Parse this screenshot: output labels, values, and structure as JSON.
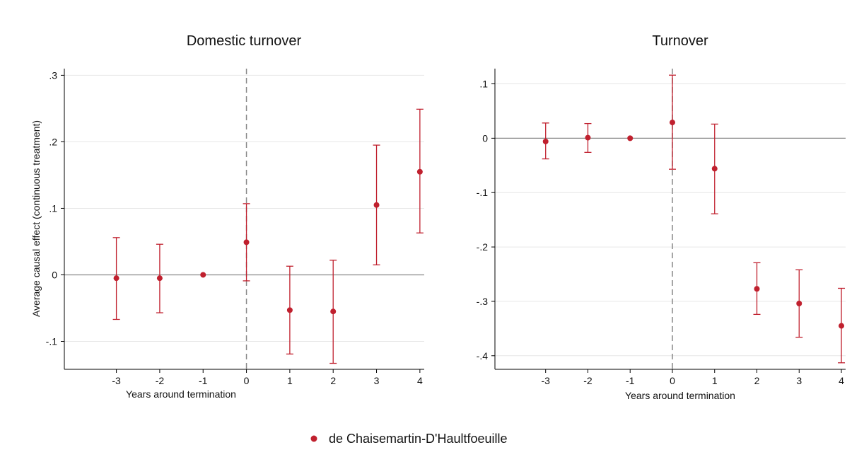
{
  "colors": {
    "marker": "#c0202e",
    "grid": "#e6e6e6",
    "axis": "#000000",
    "zero_line": "#888888",
    "vline": "#888888"
  },
  "legend": {
    "label": "de Chaisemartin-D'Haultfoeuille",
    "placement": "bottom-center"
  },
  "chart_data": [
    {
      "type": "scatter",
      "title": "Domestic turnover",
      "xlabel": "Years around termination",
      "ylabel": "Average causal effect (continuous treatment)",
      "x_ticks": [
        -3,
        -2,
        -1,
        0,
        1,
        2,
        3,
        4
      ],
      "y_ticks": [
        -0.1,
        0,
        0.1,
        0.2,
        0.3
      ],
      "y_tick_labels": [
        "-.1",
        "0",
        ".1",
        ".2",
        ".3"
      ],
      "xlim": [
        -4.2,
        4.1
      ],
      "ylim": [
        -0.142,
        0.31
      ],
      "grid": true,
      "vline_x": 0,
      "hline_y": 0,
      "series": [
        {
          "name": "de Chaisemartin-D'Haultfoeuille",
          "points": [
            {
              "x": -3,
              "y": -0.005,
              "lo": -0.067,
              "hi": 0.056
            },
            {
              "x": -2,
              "y": -0.005,
              "lo": -0.057,
              "hi": 0.046
            },
            {
              "x": -1,
              "y": 0.0,
              "lo": 0.0,
              "hi": 0.0
            },
            {
              "x": 0,
              "y": 0.049,
              "lo": -0.009,
              "hi": 0.107
            },
            {
              "x": 1,
              "y": -0.053,
              "lo": -0.119,
              "hi": 0.013
            },
            {
              "x": 2,
              "y": -0.055,
              "lo": -0.133,
              "hi": 0.022
            },
            {
              "x": 3,
              "y": 0.105,
              "lo": 0.015,
              "hi": 0.195
            },
            {
              "x": 4,
              "y": 0.155,
              "lo": 0.063,
              "hi": 0.249
            }
          ]
        }
      ]
    },
    {
      "type": "scatter",
      "title": "Turnover",
      "xlabel": "Years around termination",
      "ylabel": "",
      "x_ticks": [
        -3,
        -2,
        -1,
        0,
        1,
        2,
        3,
        4
      ],
      "y_ticks": [
        -0.4,
        -0.3,
        -0.2,
        -0.1,
        0,
        0.1
      ],
      "y_tick_labels": [
        "-.4",
        "-.3",
        "-.2",
        "-.1",
        "0",
        ".1"
      ],
      "xlim": [
        -4.2,
        4.1
      ],
      "ylim": [
        -0.425,
        0.128
      ],
      "grid": true,
      "vline_x": 0,
      "hline_y": 0,
      "series": [
        {
          "name": "de Chaisemartin-D'Haultfoeuille",
          "points": [
            {
              "x": -3,
              "y": -0.006,
              "lo": -0.038,
              "hi": 0.028
            },
            {
              "x": -2,
              "y": 0.001,
              "lo": -0.026,
              "hi": 0.027
            },
            {
              "x": -1,
              "y": 0.0,
              "lo": 0.0,
              "hi": 0.0
            },
            {
              "x": 0,
              "y": 0.029,
              "lo": -0.057,
              "hi": 0.116
            },
            {
              "x": 1,
              "y": -0.056,
              "lo": -0.139,
              "hi": 0.026
            },
            {
              "x": 2,
              "y": -0.277,
              "lo": -0.324,
              "hi": -0.229
            },
            {
              "x": 3,
              "y": -0.304,
              "lo": -0.366,
              "hi": -0.242
            },
            {
              "x": 4,
              "y": -0.345,
              "lo": -0.413,
              "hi": -0.276
            }
          ]
        }
      ]
    }
  ]
}
